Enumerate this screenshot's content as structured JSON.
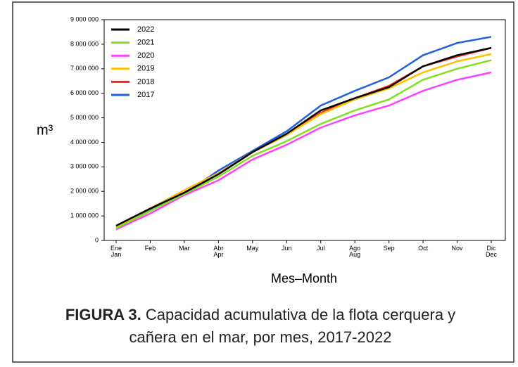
{
  "chart_data": {
    "type": "line",
    "ylabel": "m³",
    "xlabel": "Mes–Month",
    "caption_label": "FIGURA 3.",
    "caption": "Capacidad acumulativa de la flota cerquera y cañera en el mar, por mes, 2017-2022",
    "categories": [
      "Ene\nJan",
      "Feb",
      "Mar",
      "Abr\nApr",
      "May",
      "Jun",
      "Jul",
      "Ago\nAug",
      "Sep",
      "Oct",
      "Nov",
      "Dic\nDec"
    ],
    "ylim": [
      0,
      9000000
    ],
    "yticks": [
      {
        "value": 0,
        "label": "0"
      },
      {
        "value": 1000000,
        "label": "1 000 000"
      },
      {
        "value": 2000000,
        "label": "2 000 000"
      },
      {
        "value": 3000000,
        "label": "3 000 000"
      },
      {
        "value": 4000000,
        "label": "4 000 000"
      },
      {
        "value": 5000000,
        "label": "5 000 000"
      },
      {
        "value": 6000000,
        "label": "6 000 000"
      },
      {
        "value": 7000000,
        "label": "7 000 000"
      },
      {
        "value": 8000000,
        "label": "8 000 000"
      },
      {
        "value": 9000000,
        "label": "9 000 000"
      }
    ],
    "legend": "upper-left",
    "series": [
      {
        "name": "2022",
        "color": "#000000",
        "values": [
          600000,
          1300000,
          1950000,
          2700000,
          3600000,
          4350000,
          5300000,
          5800000,
          6250000,
          7100000,
          7550000,
          7850000
        ]
      },
      {
        "name": "2021",
        "color": "#80e020",
        "values": [
          500000,
          1200000,
          1900000,
          2600000,
          3450000,
          4050000,
          4750000,
          5300000,
          5750000,
          6550000,
          7000000,
          7350000
        ]
      },
      {
        "name": "2020",
        "color": "#ff40ff",
        "values": [
          450000,
          1100000,
          1850000,
          2450000,
          3300000,
          3900000,
          4600000,
          5100000,
          5500000,
          6100000,
          6550000,
          6850000
        ]
      },
      {
        "name": "2019",
        "color": "#ffc000",
        "values": [
          550000,
          1300000,
          2050000,
          2750000,
          3600000,
          4300000,
          5150000,
          5750000,
          6200000,
          6850000,
          7300000,
          7600000
        ]
      },
      {
        "name": "2018",
        "color": "#ff2020",
        "values": [
          600000,
          1300000,
          1950000,
          2700000,
          3600000,
          4300000,
          5200000,
          5800000,
          6300000,
          7100000,
          7500000,
          7850000
        ]
      },
      {
        "name": "2017",
        "color": "#1f5fe0",
        "values": [
          550000,
          1250000,
          1900000,
          2850000,
          3650000,
          4450000,
          5500000,
          6100000,
          6650000,
          7550000,
          8050000,
          8300000
        ]
      }
    ]
  }
}
